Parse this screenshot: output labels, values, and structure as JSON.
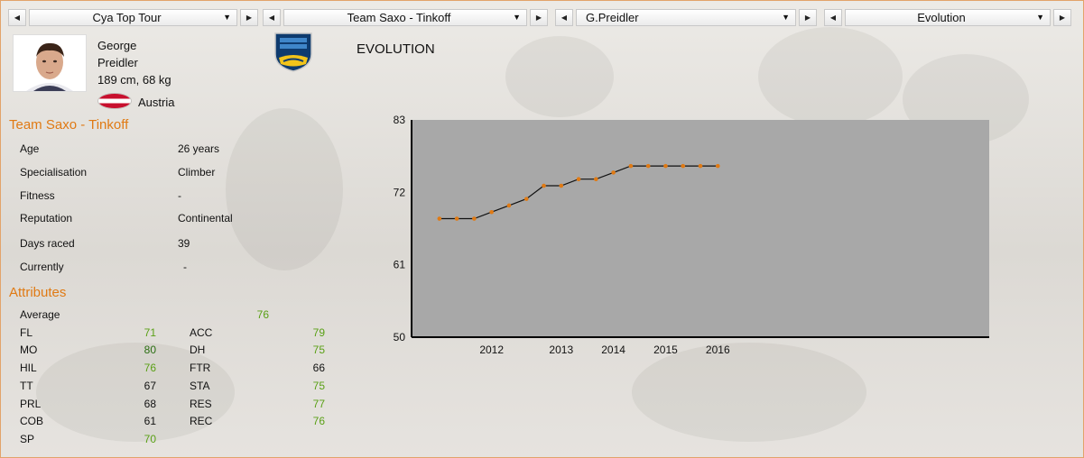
{
  "selectors": [
    {
      "label": "Cya Top Tour"
    },
    {
      "label": "Team Saxo - Tinkoff"
    },
    {
      "label": "G.Preidler"
    },
    {
      "label": "Evolution"
    }
  ],
  "rider": {
    "first_name": "George",
    "last_name": "Preidler",
    "body": "189 cm, 68 kg",
    "country": "Austria",
    "team": "Team Saxo - Tinkoff"
  },
  "page_title": "EVOLUTION",
  "info": [
    {
      "label": "Age",
      "value": "26 years"
    },
    {
      "label": "Specialisation",
      "value": "Climber"
    },
    {
      "label": "Fitness",
      "value": "-"
    },
    {
      "label": "Reputation",
      "value": "Continental"
    },
    {
      "label": "Days raced",
      "value": "39"
    },
    {
      "label": "Currently",
      "value": "-"
    }
  ],
  "attributes_title": "Attributes",
  "average": {
    "label": "Average",
    "value": "76"
  },
  "attributes_left": [
    {
      "name": "FL",
      "value": "71"
    },
    {
      "name": "MO",
      "value": "80"
    },
    {
      "name": "HIL",
      "value": "76"
    },
    {
      "name": "TT",
      "value": "67"
    },
    {
      "name": "PRL",
      "value": "68"
    },
    {
      "name": "COB",
      "value": "61"
    },
    {
      "name": "SP",
      "value": "70"
    }
  ],
  "attributes_right": [
    {
      "name": "ACC",
      "value": "79"
    },
    {
      "name": "DH",
      "value": "75"
    },
    {
      "name": "FTR",
      "value": "66"
    },
    {
      "name": "STA",
      "value": "75"
    },
    {
      "name": "RES",
      "value": "77"
    },
    {
      "name": "REC",
      "value": "76"
    }
  ],
  "colors": {
    "accent": "#e07a14",
    "good": "#5aa016",
    "very_good": "#2a6e12",
    "plot_bg": "#a8a8a8",
    "marker": "#e07a14"
  },
  "icons": [
    "left-arrow-icon",
    "right-arrow-icon",
    "dropdown-icon",
    "austria-flag-icon",
    "team-logo-icon"
  ],
  "chart_data": {
    "type": "line",
    "title": "",
    "xlabel": "",
    "ylabel": "",
    "ylim": [
      50,
      83
    ],
    "yticks": [
      "83",
      "72",
      "61",
      "50"
    ],
    "xtick_labels": [
      "2012",
      "2013",
      "2014",
      "2015",
      "2016"
    ],
    "xtick_positions": [
      2012.25,
      2013.25,
      2014.0,
      2014.75,
      2015.5
    ],
    "series": [
      {
        "x": [
          2011.5,
          2011.75,
          2012.0,
          2012.25,
          2012.5,
          2012.75,
          2013.0,
          2013.25,
          2013.5,
          2013.75,
          2014.0,
          2014.25,
          2014.5,
          2014.75,
          2015.0,
          2015.25,
          2015.5
        ],
        "values": [
          68,
          68,
          68,
          69,
          70,
          71,
          73,
          73,
          74,
          74,
          75,
          76,
          76,
          76,
          76,
          76,
          76
        ]
      }
    ],
    "grid": false
  }
}
